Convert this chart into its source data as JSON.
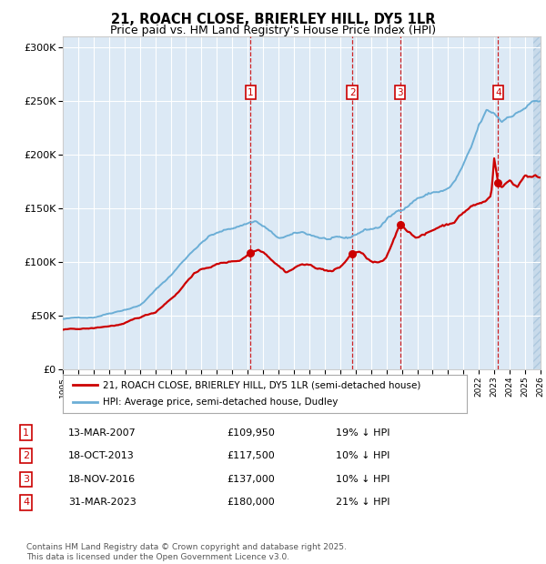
{
  "title": "21, ROACH CLOSE, BRIERLEY HILL, DY5 1LR",
  "subtitle": "Price paid vs. HM Land Registry's House Price Index (HPI)",
  "legend_line1": "21, ROACH CLOSE, BRIERLEY HILL, DY5 1LR (semi-detached house)",
  "legend_line2": "HPI: Average price, semi-detached house, Dudley",
  "footer": "Contains HM Land Registry data © Crown copyright and database right 2025.\nThis data is licensed under the Open Government Licence v3.0.",
  "transactions": [
    {
      "num": 1,
      "date": "13-MAR-2007",
      "price": 109950,
      "pct": "19%",
      "dir": "↓",
      "label": "HPI",
      "year": 2007.19
    },
    {
      "num": 2,
      "date": "18-OCT-2013",
      "price": 117500,
      "pct": "10%",
      "dir": "↓",
      "label": "HPI",
      "year": 2013.79
    },
    {
      "num": 3,
      "date": "18-NOV-2016",
      "price": 137000,
      "pct": "10%",
      "dir": "↓",
      "label": "HPI",
      "year": 2016.88
    },
    {
      "num": 4,
      "date": "31-MAR-2023",
      "price": 180000,
      "pct": "21%",
      "dir": "↓",
      "label": "HPI",
      "year": 2023.25
    }
  ],
  "hpi_color": "#6baed6",
  "price_color": "#cc0000",
  "background_color": "#dce9f5",
  "grid_color": "#ffffff",
  "vline_color": "#cc0000",
  "ylim": [
    0,
    310000
  ],
  "xlim_start": 1995.0,
  "xlim_end": 2026.0,
  "hatch_start": 2025.5,
  "hpi_milestones": [
    [
      1995.0,
      47000
    ],
    [
      1997.0,
      49000
    ],
    [
      2000.0,
      62000
    ],
    [
      2002.0,
      90000
    ],
    [
      2003.5,
      115000
    ],
    [
      2004.5,
      128000
    ],
    [
      2006.0,
      135000
    ],
    [
      2007.5,
      143000
    ],
    [
      2008.5,
      133000
    ],
    [
      2009.0,
      125000
    ],
    [
      2009.5,
      128000
    ],
    [
      2010.5,
      130000
    ],
    [
      2012.0,
      125000
    ],
    [
      2013.5,
      122000
    ],
    [
      2014.5,
      130000
    ],
    [
      2015.5,
      133000
    ],
    [
      2016.0,
      140000
    ],
    [
      2017.0,
      150000
    ],
    [
      2018.0,
      162000
    ],
    [
      2019.0,
      167000
    ],
    [
      2020.0,
      170000
    ],
    [
      2020.5,
      178000
    ],
    [
      2021.5,
      205000
    ],
    [
      2022.0,
      225000
    ],
    [
      2022.5,
      238000
    ],
    [
      2023.0,
      235000
    ],
    [
      2023.5,
      228000
    ],
    [
      2024.0,
      235000
    ],
    [
      2024.5,
      238000
    ],
    [
      2025.0,
      243000
    ],
    [
      2025.5,
      248000
    ]
  ],
  "price_milestones": [
    [
      1995.0,
      37000
    ],
    [
      1997.0,
      38000
    ],
    [
      1999.0,
      42000
    ],
    [
      2001.0,
      52000
    ],
    [
      2002.5,
      72000
    ],
    [
      2003.5,
      90000
    ],
    [
      2005.0,
      98000
    ],
    [
      2006.5,
      102000
    ],
    [
      2007.19,
      110000
    ],
    [
      2007.7,
      113000
    ],
    [
      2008.0,
      112000
    ],
    [
      2009.5,
      95000
    ],
    [
      2010.5,
      103000
    ],
    [
      2012.0,
      98000
    ],
    [
      2012.5,
      97000
    ],
    [
      2013.0,
      100000
    ],
    [
      2013.79,
      113000
    ],
    [
      2014.2,
      115000
    ],
    [
      2015.0,
      105000
    ],
    [
      2015.5,
      103000
    ],
    [
      2016.0,
      106000
    ],
    [
      2016.88,
      137000
    ],
    [
      2017.2,
      134000
    ],
    [
      2017.8,
      128000
    ],
    [
      2018.5,
      130000
    ],
    [
      2019.0,
      133000
    ],
    [
      2019.5,
      138000
    ],
    [
      2020.0,
      140000
    ],
    [
      2020.5,
      145000
    ],
    [
      2021.0,
      152000
    ],
    [
      2021.5,
      158000
    ],
    [
      2022.0,
      160000
    ],
    [
      2022.5,
      163000
    ],
    [
      2022.8,
      170000
    ],
    [
      2023.0,
      205000
    ],
    [
      2023.25,
      180000
    ],
    [
      2023.5,
      177000
    ],
    [
      2024.0,
      183000
    ],
    [
      2024.5,
      178000
    ],
    [
      2025.0,
      190000
    ],
    [
      2025.5,
      188000
    ]
  ]
}
